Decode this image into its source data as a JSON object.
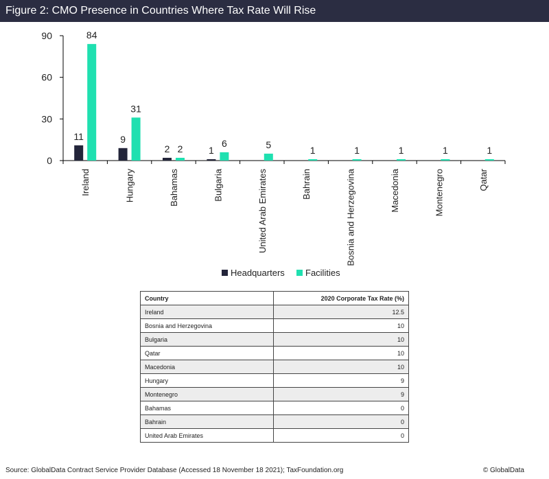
{
  "figure_title": "Figure 2: CMO Presence in Countries Where Tax Rate Will Rise",
  "chart_data": {
    "type": "bar",
    "categories": [
      "Ireland",
      "Hungary",
      "Bahamas",
      "Bulgaria",
      "United Arab Emirates",
      "Bahrain",
      "Bosnia and Herzegovina",
      "Macedonia",
      "Montenegro",
      "Qatar"
    ],
    "series": [
      {
        "name": "Headquarters",
        "color": "#23253a",
        "values": [
          11,
          9,
          2,
          1,
          0,
          0,
          0,
          0,
          0,
          0
        ],
        "labels": [
          "11",
          "9",
          "2",
          "1",
          "",
          "",
          "",
          "",
          "",
          ""
        ]
      },
      {
        "name": "Facilities",
        "color": "#1fe0b0",
        "values": [
          84,
          31,
          2,
          6,
          5,
          1,
          1,
          1,
          1,
          1
        ],
        "labels": [
          "84",
          "31",
          "2",
          "6",
          "5",
          "1",
          "1",
          "1",
          "1",
          "1"
        ]
      }
    ],
    "yticks": [
      0,
      30,
      60,
      90
    ],
    "ylim": [
      0,
      90
    ],
    "legend_position": "bottom"
  },
  "table": {
    "headers": [
      "Country",
      "2020 Corporate Tax Rate (%)"
    ],
    "rows": [
      [
        "Ireland",
        "12.5"
      ],
      [
        "Bosnia and Herzegovina",
        "10"
      ],
      [
        "Bulgaria",
        "10"
      ],
      [
        "Qatar",
        "10"
      ],
      [
        "Macedonia",
        "10"
      ],
      [
        "Hungary",
        "9"
      ],
      [
        "Montenegro",
        "9"
      ],
      [
        "Bahamas",
        "0"
      ],
      [
        "Bahrain",
        "0"
      ],
      [
        "United Arab Emirates",
        "0"
      ]
    ]
  },
  "footer": {
    "source": "Source: GlobalData Contract Service Provider Database (Accessed 18 November 18 2021); TaxFoundation.org",
    "credit": "© GlobalData"
  }
}
